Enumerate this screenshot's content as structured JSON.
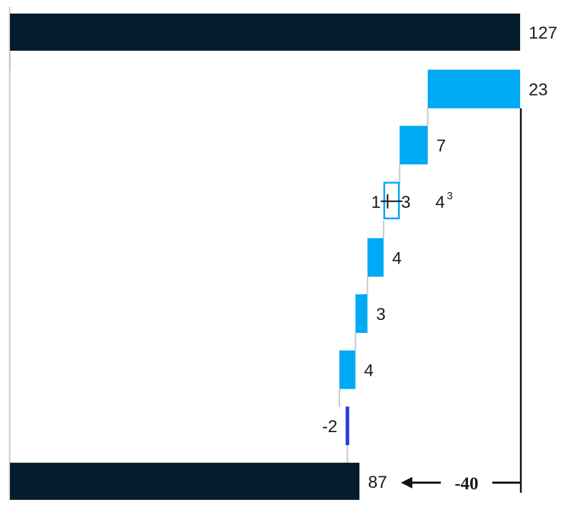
{
  "chart_data": {
    "type": "bar",
    "orientation": "horizontal",
    "subtype": "waterfall",
    "title": "",
    "xlabel": "",
    "ylabel": "",
    "xlim": [
      0,
      127
    ],
    "grid": false,
    "legend": "none",
    "bars": [
      {
        "kind": "total",
        "value": 127,
        "label": "127"
      },
      {
        "kind": "step",
        "value": 23,
        "label": "23"
      },
      {
        "kind": "step",
        "value": 7,
        "label": "7"
      },
      {
        "kind": "split",
        "value": 4,
        "label": "4",
        "footnote": "3",
        "parts": [
          {
            "value": 1,
            "label": "1"
          },
          {
            "value": 3,
            "label": "3"
          }
        ]
      },
      {
        "kind": "step",
        "value": 4,
        "label": "4"
      },
      {
        "kind": "step",
        "value": 3,
        "label": "3"
      },
      {
        "kind": "step",
        "value": 4,
        "label": "4"
      },
      {
        "kind": "negative",
        "value": -2,
        "label": "-2"
      },
      {
        "kind": "total",
        "value": 87,
        "label": "87"
      }
    ],
    "difference": {
      "value": -40,
      "label": "-40"
    },
    "colors": {
      "total": "#041c2c",
      "step": "#00a9f4",
      "negative": "#2b3be0",
      "connector": "#c8c8c8",
      "axis": "#c8c8c8",
      "bracket": "#111111"
    }
  }
}
